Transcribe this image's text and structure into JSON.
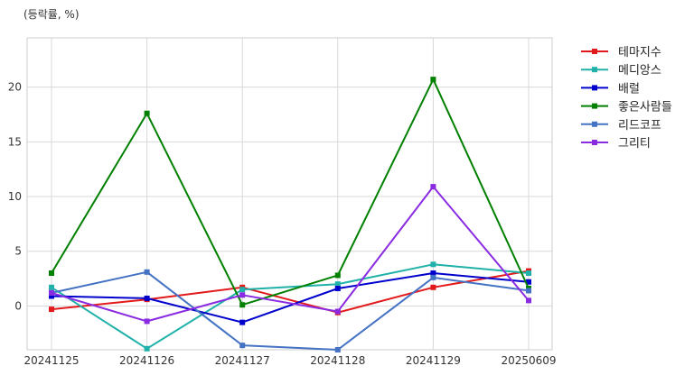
{
  "chart_data": {
    "type": "line",
    "ylabel": "(등락률, %)",
    "categories": [
      "20241125",
      "20241126",
      "20241127",
      "20241128",
      "20241129",
      "20250609"
    ],
    "yticks": [
      0,
      5,
      10,
      15,
      20
    ],
    "ylim": [
      -4,
      24.5
    ],
    "grid": true,
    "legend_position": "top-right outside",
    "series": [
      {
        "name": "테마지수",
        "color": "#e31a1c",
        "values": [
          -0.3,
          0.6,
          1.7,
          -0.6,
          1.7,
          3.2
        ]
      },
      {
        "name": "메디앙스",
        "color": "#20b2aa",
        "values": [
          1.7,
          -3.9,
          1.5,
          2.0,
          3.8,
          3.0
        ]
      },
      {
        "name": "배럴",
        "color": "#0000cd",
        "values": [
          0.9,
          0.7,
          -1.5,
          1.6,
          3.0,
          2.2
        ]
      },
      {
        "name": "좋은사람들",
        "color": "#008000",
        "values": [
          3.0,
          17.6,
          0.1,
          2.8,
          20.7,
          1.6
        ]
      },
      {
        "name": "리드코프",
        "color": "#4472c4",
        "values": [
          1.2,
          3.1,
          -3.6,
          -4.0,
          2.6,
          1.4
        ]
      },
      {
        "name": "그리티",
        "color": "#8a2be2",
        "values": [
          1.2,
          -1.4,
          1.0,
          -0.5,
          10.9,
          0.5
        ]
      }
    ]
  }
}
